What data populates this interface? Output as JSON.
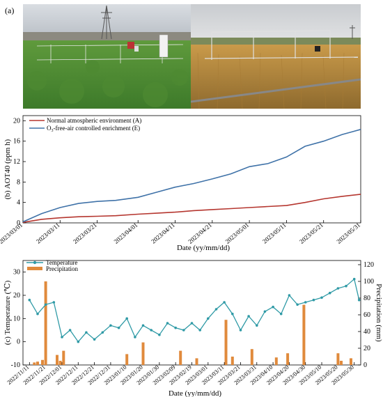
{
  "figure": {
    "panel_a_label": "(a)"
  },
  "chart_data": [
    {
      "type": "line",
      "panel": "b",
      "ylabel": "(b) AOT40 (ppm h)",
      "xlabel": "Date (yy/mm/dd)",
      "ylim": [
        0,
        21
      ],
      "yticks": [
        "0",
        "4",
        "8",
        "12",
        "16",
        "20"
      ],
      "xticks": [
        "2023/03/01",
        "2023/03/11",
        "2023/03/21",
        "2023/04/01",
        "2023/04/11",
        "2023/04/21",
        "2023/05/01",
        "2023/05/11",
        "2023/05/21",
        "2023/05/31"
      ],
      "legend_position": "top-left",
      "legend_normal": "Normal atmospheric environment (A)",
      "legend_ozone_prefix": "O",
      "legend_ozone_sub": "3",
      "legend_ozone_suffix": "-free-air controlled enrichment (E)",
      "colors": {
        "normal": "#b5362f",
        "ozone": "#3f72a8"
      },
      "series": [
        {
          "name": "Normal atmospheric environment (A)",
          "x": [
            "2023/03/01",
            "2023/03/06",
            "2023/03/11",
            "2023/03/16",
            "2023/03/21",
            "2023/03/26",
            "2023/04/01",
            "2023/04/06",
            "2023/04/11",
            "2023/04/16",
            "2023/04/21",
            "2023/04/26",
            "2023/05/01",
            "2023/05/06",
            "2023/05/11",
            "2023/05/16",
            "2023/05/21",
            "2023/05/26",
            "2023/05/31"
          ],
          "y": [
            0.1,
            0.7,
            1.0,
            1.2,
            1.3,
            1.4,
            1.7,
            1.9,
            2.1,
            2.4,
            2.6,
            2.8,
            3.0,
            3.2,
            3.4,
            4.0,
            4.7,
            5.2,
            5.6
          ]
        },
        {
          "name": "O3-free-air controlled enrichment (E)",
          "x": [
            "2023/03/01",
            "2023/03/06",
            "2023/03/11",
            "2023/03/16",
            "2023/03/21",
            "2023/03/26",
            "2023/04/01",
            "2023/04/06",
            "2023/04/11",
            "2023/04/16",
            "2023/04/21",
            "2023/04/26",
            "2023/05/01",
            "2023/05/06",
            "2023/05/11",
            "2023/05/16",
            "2023/05/21",
            "2023/05/26",
            "2023/05/31"
          ],
          "y": [
            0.2,
            1.8,
            3.0,
            3.8,
            4.2,
            4.4,
            5.0,
            6.0,
            7.0,
            7.7,
            8.6,
            9.6,
            11.0,
            11.6,
            12.9,
            15.0,
            16.0,
            17.3,
            18.3
          ]
        }
      ]
    },
    {
      "type": "line",
      "panel": "c",
      "ylabel": "(c) Temperature (℃)",
      "y2label": "Precipitation (mm)",
      "xlabel": "Date (yy/mm/dd)",
      "ylim": [
        -10,
        35
      ],
      "y2lim": [
        0,
        125
      ],
      "yticks": [
        "-10",
        "0",
        "10",
        "20",
        "30"
      ],
      "y2ticks": [
        "0",
        "20",
        "40",
        "60",
        "80",
        "100",
        "120"
      ],
      "xticks": [
        "2022/11/11",
        "2022/11/21",
        "2022/12/01",
        "2022/12/11",
        "2022/12/21",
        "2022/12/31",
        "2023/01/10",
        "2023/01/20",
        "2023/01/30",
        "2023/02/09",
        "2023/02/19",
        "2023/03/01",
        "2023/03/11",
        "2023/03/21",
        "2023/03/31",
        "2023/04/10",
        "2023/04/20",
        "2023/04/30",
        "2023/05/10",
        "2023/05/20",
        "2023/05/30"
      ],
      "legend_position": "top-left",
      "legend_temperature": "Temperature",
      "legend_precipitation": "Precipitation",
      "colors": {
        "temperature": "#2f9aa6",
        "precipitation": "#e08a3c"
      },
      "temperature": {
        "name": "Temperature",
        "x": [
          "2022/11/11",
          "2022/11/16",
          "2022/11/21",
          "2022/11/26",
          "2022/12/01",
          "2022/12/06",
          "2022/12/11",
          "2022/12/16",
          "2022/12/21",
          "2022/12/26",
          "2022/12/31",
          "2023/01/05",
          "2023/01/10",
          "2023/01/15",
          "2023/01/20",
          "2023/01/25",
          "2023/01/30",
          "2023/02/04",
          "2023/02/09",
          "2023/02/14",
          "2023/02/19",
          "2023/02/24",
          "2023/03/01",
          "2023/03/06",
          "2023/03/11",
          "2023/03/16",
          "2023/03/21",
          "2023/03/26",
          "2023/03/31",
          "2023/04/05",
          "2023/04/10",
          "2023/04/15",
          "2023/04/20",
          "2023/04/25",
          "2023/04/30",
          "2023/05/05",
          "2023/05/10",
          "2023/05/15",
          "2023/05/20",
          "2023/05/25",
          "2023/05/30",
          "2023/06/02"
        ],
        "y": [
          18,
          12,
          16,
          17,
          2,
          5,
          0,
          4,
          1,
          4,
          7,
          6,
          10,
          2,
          7,
          5,
          3,
          8,
          6,
          5,
          8,
          5,
          10,
          14,
          17,
          12,
          5,
          11,
          7,
          13,
          15,
          12,
          20,
          16,
          17,
          18,
          19,
          21,
          23,
          24,
          27,
          18
        ]
      },
      "precipitation": {
        "name": "Precipitation",
        "x": [
          "2022/11/14",
          "2022/11/16",
          "2022/11/19",
          "2022/11/21",
          "2022/11/28",
          "2022/11/30",
          "2022/12/02",
          "2023/01/10",
          "2023/01/20",
          "2023/02/12",
          "2023/02/22",
          "2023/03/12",
          "2023/03/16",
          "2023/03/28",
          "2023/04/12",
          "2023/04/19",
          "2023/04/29",
          "2023/05/20",
          "2023/05/22",
          "2023/05/28"
        ],
        "y": [
          3,
          4,
          6,
          100,
          12,
          5,
          17,
          13,
          27,
          17,
          8,
          54,
          10,
          19,
          9,
          14,
          72,
          14,
          5,
          8
        ]
      }
    }
  ]
}
